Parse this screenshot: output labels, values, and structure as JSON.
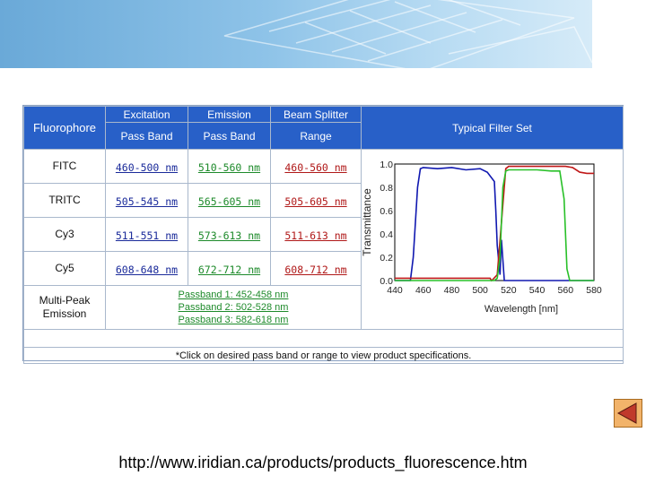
{
  "table": {
    "header": {
      "fluorophore": "Fluorophore",
      "excitation": "Excitation",
      "emission": "Emission",
      "beam_splitter": "Beam Splitter",
      "pass_band_ex": "Pass Band",
      "pass_band_em": "Pass Band",
      "range": "Range",
      "typical_filter_set": "Typical Filter Set"
    },
    "rows": [
      {
        "fluorophore": "FITC",
        "excitation": "460-500 nm",
        "emission": "510-560 nm",
        "beam_splitter": "460-560 nm"
      },
      {
        "fluorophore": "TRITC",
        "excitation": "505-545 nm",
        "emission": "565-605 nm",
        "beam_splitter": "505-605 nm"
      },
      {
        "fluorophore": "Cy3",
        "excitation": "511-551 nm",
        "emission": "573-613 nm",
        "beam_splitter": "511-613 nm"
      },
      {
        "fluorophore": "Cy5",
        "excitation": "608-648 nm",
        "emission": "672-712 nm",
        "beam_splitter": "608-712 nm"
      }
    ],
    "multi_peak": {
      "label_line1": "Multi-Peak",
      "label_line2": "Emission",
      "passbands": [
        "Passband 1: 452-458 nm",
        "Passband 2: 502-528 nm",
        "Passband 3: 582-618 nm"
      ]
    },
    "note": "*Click on desired pass band or range to view product specifications."
  },
  "chart_data": {
    "type": "line",
    "xlabel": "Wavelength [nm]",
    "ylabel": "Transmittance",
    "xlim": [
      440,
      580
    ],
    "ylim": [
      0.0,
      1.0
    ],
    "xticks": [
      440,
      460,
      480,
      500,
      520,
      540,
      560,
      580
    ],
    "yticks": [
      "0.0",
      "0.2",
      "0.4",
      "0.6",
      "0.8",
      "1.0"
    ],
    "series": [
      {
        "color": "#1018b0",
        "x": [
          440,
          451,
          453,
          456,
          458,
          460,
          470,
          480,
          490,
          500,
          505,
          510,
          511,
          512,
          514,
          515,
          517,
          580
        ],
        "y": [
          0.0,
          0.0,
          0.2,
          0.8,
          0.96,
          0.97,
          0.96,
          0.97,
          0.95,
          0.96,
          0.93,
          0.85,
          0.6,
          0.3,
          0.05,
          0.35,
          0.0,
          0.0
        ]
      },
      {
        "color": "#c01818",
        "x": [
          440,
          500,
          507,
          508,
          509,
          512,
          515,
          518,
          520,
          540,
          560,
          565,
          570,
          575,
          580
        ],
        "y": [
          0.02,
          0.02,
          0.02,
          0.0,
          0.01,
          0.05,
          0.5,
          0.96,
          0.98,
          0.98,
          0.98,
          0.97,
          0.93,
          0.92,
          0.92
        ]
      },
      {
        "color": "#28c028",
        "x": [
          440,
          500,
          510,
          512,
          514,
          516,
          518,
          520,
          530,
          540,
          550,
          556,
          559,
          561,
          563,
          580
        ],
        "y": [
          0.0,
          0.0,
          0.0,
          0.02,
          0.2,
          0.8,
          0.94,
          0.95,
          0.95,
          0.95,
          0.94,
          0.94,
          0.7,
          0.1,
          0.0,
          0.0
        ]
      }
    ]
  },
  "footer_url": "http://www.iridian.ca/products/products_fluorescence.htm",
  "colors": {
    "header_bg": "#2860c8",
    "excitation_link": "#1a2a9a",
    "emission_link": "#1d8a2a",
    "splitter_link": "#b01818"
  }
}
